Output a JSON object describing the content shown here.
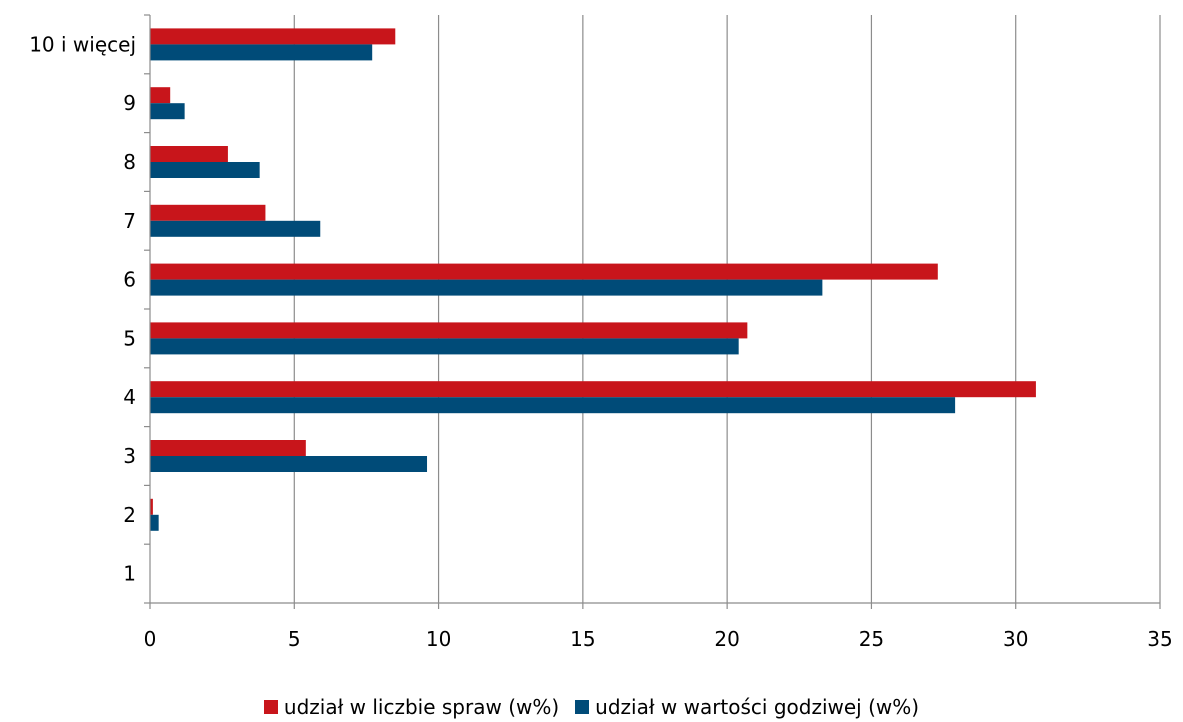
{
  "chart_data": {
    "type": "bar",
    "orientation": "horizontal",
    "categories": [
      "1",
      "2",
      "3",
      "4",
      "5",
      "6",
      "7",
      "8",
      "9",
      "10 i więcej"
    ],
    "series": [
      {
        "name": "udział w liczbie spraw (w%)",
        "color": "#c8151b",
        "values": [
          0,
          0.1,
          5.4,
          30.7,
          20.7,
          27.3,
          4.0,
          2.7,
          0.7,
          8.5
        ]
      },
      {
        "name": "udział w wartości godziwej (w%)",
        "color": "#004b78",
        "values": [
          0,
          0.3,
          9.6,
          27.9,
          20.4,
          23.3,
          5.9,
          3.8,
          1.2,
          7.7
        ]
      }
    ],
    "xlim": [
      0,
      35
    ],
    "xticks": [
      0,
      5,
      10,
      15,
      20,
      25,
      30,
      35
    ],
    "title": "",
    "xlabel": "",
    "ylabel": "",
    "grid": "vertical",
    "legend_position": "bottom"
  }
}
